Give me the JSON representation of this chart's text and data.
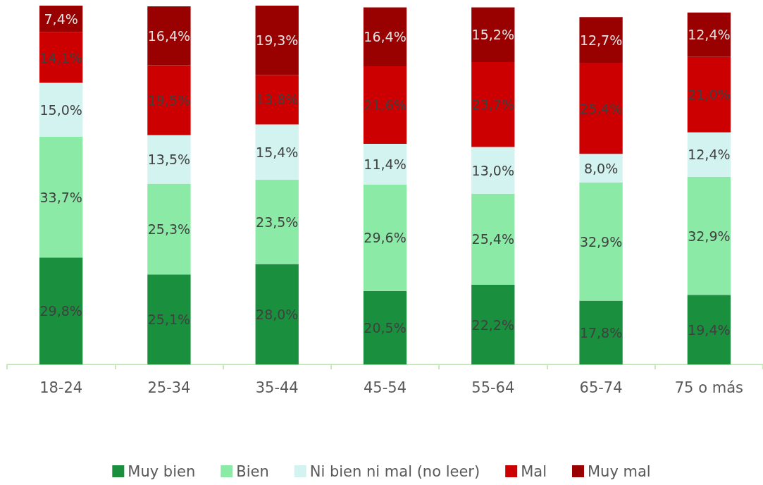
{
  "chart_data": {
    "type": "bar",
    "stacked": true,
    "tick_labels": "x",
    "legend": "bottom",
    "categories": [
      "18-24",
      "25-34",
      "35-44",
      "45-54",
      "55-64",
      "65-74",
      "75 o más"
    ],
    "series": [
      {
        "name": "Muy bien",
        "color": "#1a8f3e",
        "values": [
          29.8,
          25.1,
          28.0,
          20.5,
          22.2,
          17.8,
          19.4
        ],
        "value_labels": [
          "29,8%",
          "25,1%",
          "28,0%",
          "20,5%",
          "22,2%",
          "17,8%",
          "19,4%"
        ]
      },
      {
        "name": "Bien",
        "color": "#8ceaa7",
        "values": [
          33.7,
          25.3,
          23.5,
          29.6,
          25.4,
          32.9,
          32.9
        ],
        "value_labels": [
          "33,7%",
          "25,3%",
          "23,5%",
          "29,6%",
          "25,4%",
          "32,9%",
          "32,9%"
        ]
      },
      {
        "name": "Ni bien ni mal (no leer)",
        "color": "#d2f3ef",
        "values": [
          15.0,
          13.5,
          15.4,
          11.4,
          13.0,
          8.0,
          12.4
        ],
        "value_labels": [
          "15,0%",
          "13,5%",
          "15,4%",
          "11,4%",
          "13,0%",
          "8,0%",
          "12,4%"
        ]
      },
      {
        "name": "Mal",
        "color": "#cc0000",
        "values": [
          14.1,
          19.5,
          13.8,
          21.6,
          23.7,
          25.4,
          21.0
        ],
        "value_labels": [
          "14,1%",
          "19,5%",
          "13,8%",
          "21,6%",
          "23,7%",
          "25,4%",
          "21,0%"
        ]
      },
      {
        "name": "Muy mal",
        "color": "#990000",
        "values": [
          7.4,
          16.4,
          19.3,
          16.4,
          15.2,
          12.7,
          12.4
        ],
        "value_labels": [
          "7,4%",
          "16,4%",
          "19,3%",
          "16,4%",
          "15,2%",
          "12,7%",
          "12,4%"
        ]
      }
    ]
  }
}
